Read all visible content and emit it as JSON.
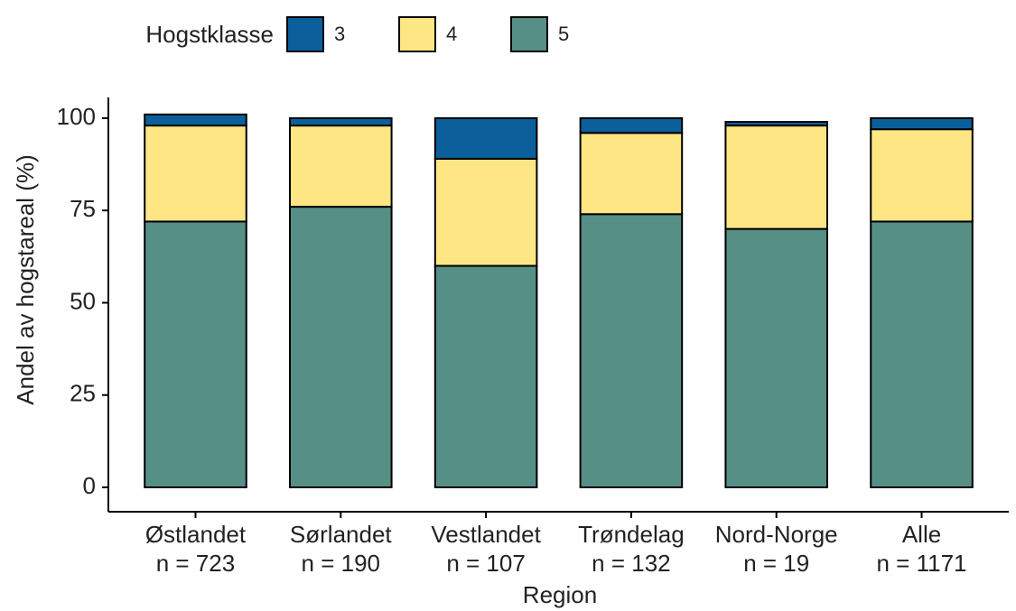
{
  "chart_data": {
    "type": "stacked_bar",
    "xlabel": "Region",
    "ylabel": "Andel av hogstareal (%)",
    "legend_title": "Hogstklasse",
    "legend_position": "top",
    "categories": [
      [
        "Østlandet",
        "n = 723"
      ],
      [
        "Sørlandet",
        "n = 190"
      ],
      [
        "Vestlandet",
        "n = 107"
      ],
      [
        "Trøndelag",
        "n = 132"
      ],
      [
        "Nord-Norge",
        "n = 19"
      ],
      [
        "Alle",
        "n = 1171"
      ]
    ],
    "series": [
      {
        "name": "5",
        "color": "#568f86",
        "values": [
          72,
          76,
          60,
          74,
          70,
          72
        ]
      },
      {
        "name": "4",
        "color": "#fee685",
        "values": [
          26,
          22,
          29,
          22,
          28,
          25
        ]
      },
      {
        "name": "3",
        "color": "#0b609c",
        "values": [
          3,
          2,
          11,
          4,
          1,
          3
        ]
      }
    ],
    "legend_order": [
      2,
      1,
      0
    ],
    "ylim": [
      -6.6,
      105.6
    ],
    "yticks": [
      0,
      25,
      50,
      75,
      100
    ]
  }
}
